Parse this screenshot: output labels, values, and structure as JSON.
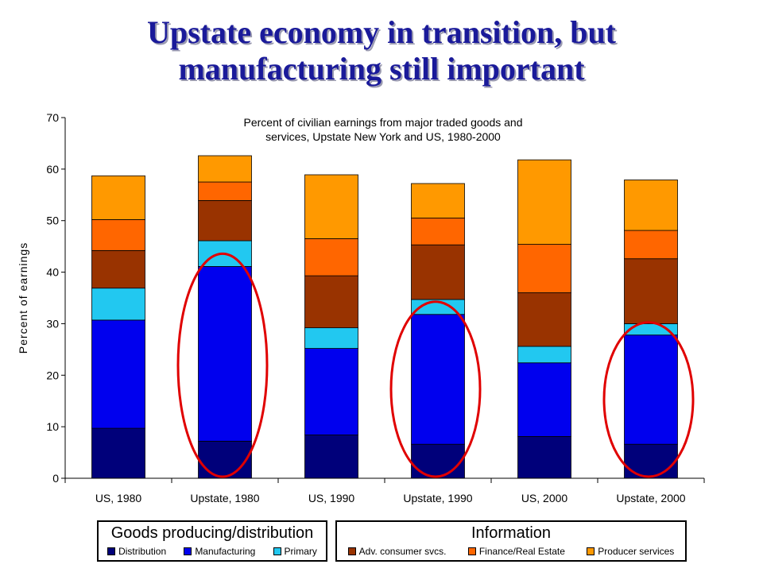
{
  "slide": {
    "title_line1": "Upstate economy in transition, but",
    "title_line2": "manufacturing still important"
  },
  "chart_data": {
    "type": "bar",
    "stacked": true,
    "title_line1": "Percent of civilian earnings from major traded goods and",
    "title_line2": "services, Upstate New York and US, 1980-2000",
    "ylabel": "Percent of earnings",
    "xlabel": "",
    "ylim": [
      0,
      70
    ],
    "yticks": [
      "0",
      "10",
      "20",
      "30",
      "40",
      "50",
      "60",
      "70"
    ],
    "categories": [
      "US, 1980",
      "Upstate, 1980",
      "US, 1990",
      "Upstate, 1990",
      "US, 2000",
      "Upstate, 2000"
    ],
    "series": [
      {
        "name": "Distribution",
        "color": "#00007a",
        "values": [
          9.7,
          7.2,
          8.4,
          6.6,
          8.1,
          6.6
        ]
      },
      {
        "name": "Manufacturing",
        "color": "#0000ee",
        "values": [
          21.0,
          33.9,
          16.8,
          25.2,
          14.3,
          21.2
        ]
      },
      {
        "name": "Primary",
        "color": "#22c8f0",
        "values": [
          6.2,
          5.0,
          4.0,
          2.9,
          3.2,
          2.2
        ]
      },
      {
        "name": "Adv. consumer svcs.",
        "color": "#993300",
        "values": [
          7.3,
          7.8,
          10.1,
          10.6,
          10.4,
          12.6
        ]
      },
      {
        "name": "Finance/Real Estate",
        "color": "#ff6600",
        "values": [
          6.0,
          3.6,
          7.2,
          5.2,
          9.4,
          5.5
        ]
      },
      {
        "name": "Producer services",
        "color": "#ff9900",
        "values": [
          8.5,
          5.1,
          12.4,
          6.7,
          16.4,
          9.8
        ]
      }
    ],
    "highlighted_categories": [
      "Upstate, 1980",
      "Upstate, 1990",
      "Upstate, 2000"
    ],
    "highlight_color": "#e00000"
  },
  "legend": {
    "groups": [
      {
        "title": "Goods producing/distribution",
        "items": [
          "Distribution",
          "Manufacturing",
          "Primary"
        ]
      },
      {
        "title": "Information",
        "items": [
          "Adv. consumer svcs.",
          "Finance/Real Estate",
          "Producer services"
        ]
      }
    ]
  }
}
